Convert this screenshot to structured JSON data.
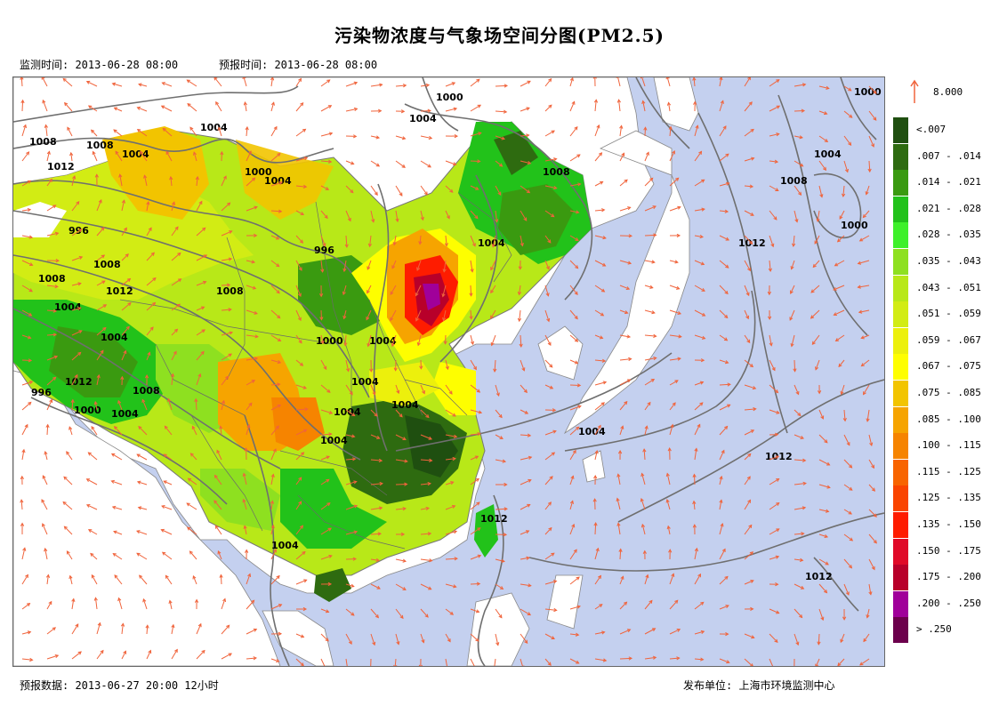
{
  "title": "污染物浓度与气象场空间分图(PM2.5)",
  "monitor_time": "监测时间: 2013-06-28 08:00",
  "forecast_time": "预报时间: 2013-06-28 08:00",
  "forecast_data": "预报数据: 2013-06-27 20:00 12小时",
  "publisher": "发布单位: 上海市环境监测中心",
  "wind_reference": "8.000",
  "colors": {
    "ocean": "#c4d0ef",
    "land_outside": "#ffffff",
    "wind_arrow": "#f0643c",
    "isobar": "#6f6f6f",
    "border": "#777777"
  },
  "legend": [
    {
      "label": "<.007",
      "color": "#1f4f10"
    },
    {
      "label": ".007 - .014",
      "color": "#2e6b10"
    },
    {
      "label": ".014 - .021",
      "color": "#3a9a10"
    },
    {
      "label": ".021 - .028",
      "color": "#22c21a"
    },
    {
      "label": ".028 - .035",
      "color": "#3ef02a"
    },
    {
      "label": ".035 - .043",
      "color": "#8ee020"
    },
    {
      "label": ".043 - .051",
      "color": "#b8e818"
    },
    {
      "label": ".051 - .059",
      "color": "#d2ec14"
    },
    {
      "label": ".059 - .067",
      "color": "#ecf00c"
    },
    {
      "label": ".067 - .075",
      "color": "#fefe00"
    },
    {
      "label": ".075 - .085",
      "color": "#f2c400"
    },
    {
      "label": ".085 - .100",
      "color": "#f6a400"
    },
    {
      "label": ".100 - .115",
      "color": "#f68400"
    },
    {
      "label": ".115 - .125",
      "color": "#f86400"
    },
    {
      "label": ".125 - .135",
      "color": "#fa4400"
    },
    {
      "label": ".135 - .150",
      "color": "#fe1c00"
    },
    {
      "label": ".150 - .175",
      "color": "#e00a28"
    },
    {
      "label": ".175 - .200",
      "color": "#b8002a"
    },
    {
      "label": ".200 - .250",
      "color": "#a0009a"
    },
    {
      "label": "> .250",
      "color": "#6c004c"
    }
  ],
  "isobar_labels": [
    "1000",
    "1004",
    "1008",
    "1012",
    "996"
  ]
}
